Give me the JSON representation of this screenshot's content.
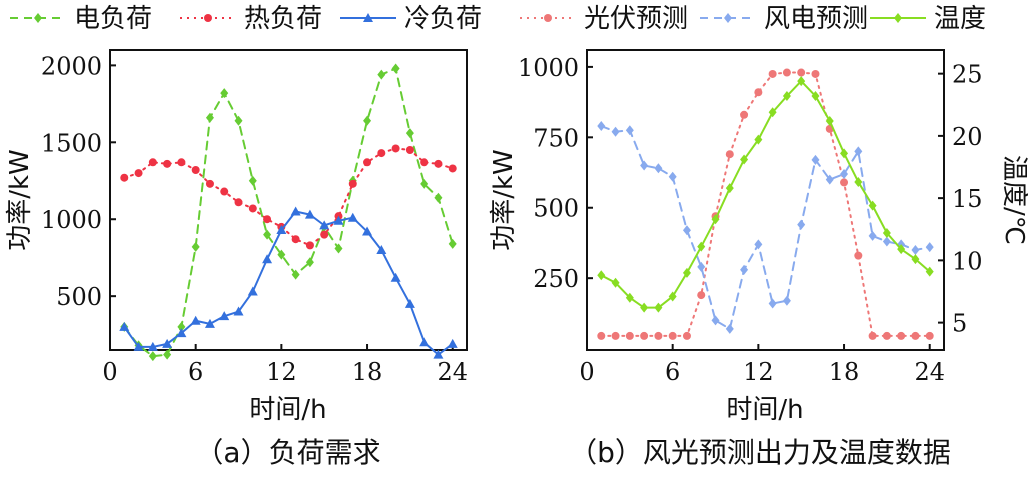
{
  "chart_data": [
    {
      "type": "line",
      "caption": "（a）负荷需求",
      "xlabel": "时间/h",
      "ylabel": "功率/kW",
      "xlim": [
        0,
        25
      ],
      "ylim": [
        150,
        2100
      ],
      "xticks": [
        0,
        6,
        12,
        18,
        24
      ],
      "yticks": [
        500,
        1000,
        1500,
        2000
      ],
      "x": [
        1,
        2,
        3,
        4,
        5,
        6,
        7,
        8,
        9,
        10,
        11,
        12,
        13,
        14,
        15,
        16,
        17,
        18,
        19,
        20,
        21,
        22,
        23,
        24
      ],
      "series": [
        {
          "name": "电负荷",
          "color": "#66cc33",
          "dash": "8,6",
          "marker": "diamond",
          "values": [
            300,
            180,
            110,
            120,
            300,
            820,
            1660,
            1820,
            1640,
            1250,
            900,
            770,
            640,
            720,
            950,
            810,
            1250,
            1640,
            1940,
            1980,
            1560,
            1230,
            1140,
            840
          ]
        },
        {
          "name": "热负荷",
          "color": "#ee3344",
          "dash": "2,5",
          "marker": "circle",
          "values": [
            1270,
            1300,
            1370,
            1360,
            1370,
            1320,
            1230,
            1180,
            1110,
            1070,
            1000,
            950,
            870,
            830,
            900,
            1020,
            1230,
            1370,
            1430,
            1460,
            1450,
            1370,
            1360,
            1330
          ]
        },
        {
          "name": "冷负荷",
          "color": "#3370dd",
          "dash": "",
          "marker": "triangle",
          "values": [
            300,
            170,
            170,
            190,
            260,
            340,
            320,
            370,
            400,
            530,
            740,
            930,
            1050,
            1030,
            960,
            990,
            1010,
            920,
            800,
            620,
            450,
            200,
            120,
            190
          ]
        }
      ]
    },
    {
      "type": "line",
      "caption": "（b）风光预测出力及温度数据",
      "xlabel": "时间/h",
      "ylabel": "功率/kW",
      "y2label": "温度/℃",
      "xlim": [
        0,
        25
      ],
      "ylim": [
        -5,
        1060
      ],
      "y2lim": [
        2.8,
        26.9
      ],
      "xticks": [
        0,
        6,
        12,
        18,
        24
      ],
      "yticks": [
        250,
        500,
        750,
        1000
      ],
      "y2ticks": [
        5,
        10,
        15,
        20,
        25
      ],
      "x": [
        1,
        2,
        3,
        4,
        5,
        6,
        7,
        8,
        9,
        10,
        11,
        12,
        13,
        14,
        15,
        16,
        17,
        18,
        19,
        20,
        21,
        22,
        23,
        24
      ],
      "series": [
        {
          "name": "光伏预测",
          "axis": "left",
          "color": "#ee7777",
          "dash": "2,5",
          "marker": "circle",
          "values": [
            45,
            45,
            45,
            45,
            45,
            45,
            45,
            190,
            470,
            690,
            830,
            910,
            975,
            980,
            980,
            975,
            780,
            590,
            330,
            45,
            45,
            45,
            45,
            45
          ]
        },
        {
          "name": "风电预测",
          "axis": "left",
          "color": "#88aaee",
          "dash": "8,6",
          "marker": "diamond",
          "values": [
            790,
            770,
            775,
            650,
            640,
            610,
            420,
            290,
            100,
            70,
            280,
            370,
            160,
            170,
            440,
            670,
            600,
            620,
            700,
            400,
            380,
            370,
            350,
            360
          ]
        },
        {
          "name": "温度",
          "axis": "right",
          "color": "#88dd22",
          "dash": "",
          "marker": "diamond",
          "values": [
            8.8,
            8.2,
            7.0,
            6.2,
            6.2,
            7.1,
            9.0,
            11.1,
            13.3,
            15.8,
            18.1,
            19.7,
            21.9,
            23.2,
            24.4,
            23.2,
            21.2,
            18.6,
            16.3,
            14.4,
            12.2,
            10.9,
            10.1,
            9.1
          ]
        }
      ]
    }
  ]
}
